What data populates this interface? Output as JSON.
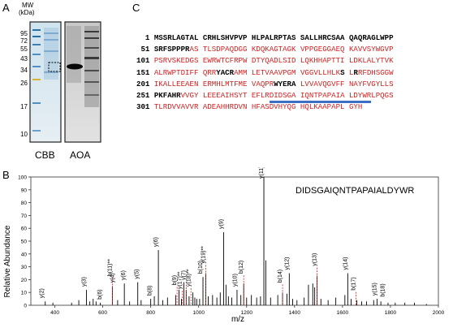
{
  "panels": {
    "a": "A",
    "b": "B",
    "c": "C"
  },
  "gel": {
    "mw_header_1": "MW",
    "mw_header_2": "(kDa)",
    "markers": [
      "95",
      "72",
      "55",
      "43",
      "34",
      "26",
      "17",
      "10"
    ],
    "lane_cbb": "CBB",
    "lane_aoa": "AOA"
  },
  "sequence": {
    "rows": [
      {
        "num": "1",
        "segments": [
          {
            "t": "MSSRLAGTAL CRHLSHVPVP HLPALRPTAS SALLHRCSAA QAQRAGLWPP",
            "c": "k"
          }
        ]
      },
      {
        "num": "51",
        "segments": [
          {
            "t": "SRFSPPPR",
            "c": "k"
          },
          {
            "t": "AS TLSDPAQDGG KDQKAGTAGK VPPGEGGAEQ KAVVSYWGVP",
            "c": "r"
          }
        ]
      },
      {
        "num": "101",
        "segments": [
          {
            "t": "PSRVSKEDGS EWRWTCFRPW DTYQADLSID LQKHHAPTTI LDKLALYTVK",
            "c": "r"
          }
        ]
      },
      {
        "num": "151",
        "segments": [
          {
            "t": "ALRWPTDIFF QRR",
            "c": "r"
          },
          {
            "t": "YACR",
            "c": "k"
          },
          {
            "t": "AMM LETVAAVPGM VGGVLLHLK",
            "c": "r"
          },
          {
            "t": "S",
            "c": "k"
          },
          {
            "t": " L",
            "c": "r"
          },
          {
            "t": "R",
            "c": "k"
          },
          {
            "t": "RFDHSGGW",
            "c": "r"
          }
        ]
      },
      {
        "num": "201",
        "segments": [
          {
            "t": "IKALLEEAEN ERMHLMTFME VAQPR",
            "c": "r"
          },
          {
            "t": "WYERA",
            "c": "k"
          },
          {
            "t": " LVVAVQGVFF NAYFVGYLLS",
            "c": "r"
          }
        ]
      },
      {
        "num": "251",
        "segments": [
          {
            "t": "PKFAHR",
            "c": "k"
          },
          {
            "t": "VVGY LEEEAIHSYT EFLR",
            "c": "r"
          },
          {
            "t": "DIDSGA IQNTPAPAIA LDYWR",
            "c": "u"
          },
          {
            "t": "LPQGS",
            "c": "r"
          }
        ]
      },
      {
        "num": "301",
        "segments": [
          {
            "t": "TLRDVVAVVR ADEAHHRDVN HFASDVHYQG HQLKAAPAPL GYH",
            "c": "r"
          }
        ]
      }
    ]
  },
  "spectrum": {
    "peptide": "DIDSGAIQNTPAPAIALDYWR",
    "ylabel": "Relative Abundance",
    "xlabel": "m/z",
    "colors": {
      "annot": "#e02020",
      "underline": "#3a6fc4",
      "red": "#d42020"
    }
  },
  "chart_data": {
    "type": "bar",
    "xlabel": "m/z",
    "ylabel": "Relative Abundance",
    "xlim": [
      300,
      2000
    ],
    "ylim": [
      0,
      100
    ],
    "xticks": [
      400,
      600,
      800,
      1000,
      1200,
      1400,
      1600,
      1800,
      2000
    ],
    "yticks": [
      0,
      10,
      20,
      30,
      40,
      50,
      60,
      70,
      80,
      90,
      100
    ],
    "peaks": [
      {
        "mz": 360,
        "i": 3
      },
      {
        "mz": 392,
        "i": 2
      },
      {
        "mz": 470,
        "i": 2
      },
      {
        "mz": 500,
        "i": 4
      },
      {
        "mz": 532,
        "i": 12
      },
      {
        "mz": 546,
        "i": 3
      },
      {
        "mz": 560,
        "i": 5
      },
      {
        "mz": 572,
        "i": 3
      },
      {
        "mz": 590,
        "i": 2
      },
      {
        "mz": 640,
        "i": 15
      },
      {
        "mz": 662,
        "i": 4
      },
      {
        "mz": 690,
        "i": 17
      },
      {
        "mz": 712,
        "i": 3
      },
      {
        "mz": 746,
        "i": 18
      },
      {
        "mz": 760,
        "i": 4
      },
      {
        "mz": 800,
        "i": 5
      },
      {
        "mz": 815,
        "i": 7
      },
      {
        "mz": 832,
        "i": 43
      },
      {
        "mz": 850,
        "i": 4
      },
      {
        "mz": 870,
        "i": 6
      },
      {
        "mz": 904,
        "i": 8
      },
      {
        "mz": 918,
        "i": 12
      },
      {
        "mz": 928,
        "i": 5
      },
      {
        "mz": 938,
        "i": 18
      },
      {
        "mz": 948,
        "i": 12
      },
      {
        "mz": 960,
        "i": 7
      },
      {
        "mz": 976,
        "i": 10
      },
      {
        "mz": 984,
        "i": 6
      },
      {
        "mz": 992,
        "i": 5
      },
      {
        "mz": 1004,
        "i": 5
      },
      {
        "mz": 1018,
        "i": 22
      },
      {
        "mz": 1030,
        "i": 25
      },
      {
        "mz": 1040,
        "i": 7
      },
      {
        "mz": 1058,
        "i": 8
      },
      {
        "mz": 1076,
        "i": 6
      },
      {
        "mz": 1090,
        "i": 10
      },
      {
        "mz": 1104,
        "i": 57
      },
      {
        "mz": 1114,
        "i": 16
      },
      {
        "mz": 1124,
        "i": 7
      },
      {
        "mz": 1138,
        "i": 6
      },
      {
        "mz": 1160,
        "i": 12
      },
      {
        "mz": 1176,
        "i": 8
      },
      {
        "mz": 1188,
        "i": 17
      },
      {
        "mz": 1200,
        "i": 6
      },
      {
        "mz": 1220,
        "i": 8
      },
      {
        "mz": 1242,
        "i": 6
      },
      {
        "mz": 1258,
        "i": 7
      },
      {
        "mz": 1272,
        "i": 100
      },
      {
        "mz": 1280,
        "i": 35
      },
      {
        "mz": 1300,
        "i": 6
      },
      {
        "mz": 1330,
        "i": 8
      },
      {
        "mz": 1350,
        "i": 10
      },
      {
        "mz": 1368,
        "i": 9
      },
      {
        "mz": 1378,
        "i": 25
      },
      {
        "mz": 1392,
        "i": 5
      },
      {
        "mz": 1410,
        "i": 4
      },
      {
        "mz": 1440,
        "i": 6
      },
      {
        "mz": 1458,
        "i": 16
      },
      {
        "mz": 1476,
        "i": 17
      },
      {
        "mz": 1484,
        "i": 14
      },
      {
        "mz": 1494,
        "i": 23
      },
      {
        "mz": 1510,
        "i": 5
      },
      {
        "mz": 1540,
        "i": 4
      },
      {
        "mz": 1572,
        "i": 6
      },
      {
        "mz": 1610,
        "i": 8
      },
      {
        "mz": 1622,
        "i": 25
      },
      {
        "mz": 1636,
        "i": 5
      },
      {
        "mz": 1660,
        "i": 4
      },
      {
        "mz": 1680,
        "i": 3
      },
      {
        "mz": 1700,
        "i": 3
      },
      {
        "mz": 1730,
        "i": 4
      },
      {
        "mz": 1744,
        "i": 5
      },
      {
        "mz": 1760,
        "i": 3
      },
      {
        "mz": 1790,
        "i": 2
      },
      {
        "mz": 1820,
        "i": 2
      },
      {
        "mz": 1860,
        "i": 2
      },
      {
        "mz": 1900,
        "i": 2
      },
      {
        "mz": 1950,
        "i": 1
      }
    ],
    "annotations": [
      {
        "label": "y(2)",
        "mz": 356,
        "dash": 0
      },
      {
        "label": "y(3)",
        "mz": 532,
        "dash": 0
      },
      {
        "label": "b(6)",
        "mz": 598,
        "dash": 0
      },
      {
        "label": "b(11)**",
        "mz": 640,
        "dash": 1
      },
      {
        "label": "y(4)",
        "mz": 650,
        "dash": 0
      },
      {
        "label": "y(6)",
        "mz": 696,
        "dash": 0
      },
      {
        "label": "y(5)",
        "mz": 752,
        "dash": 0
      },
      {
        "label": "b(8)",
        "mz": 806,
        "dash": 0
      },
      {
        "label": "y(6)",
        "mz": 832,
        "dash": 0
      },
      {
        "label": "b(9)",
        "mz": 910,
        "dash": 1
      },
      {
        "label": "y(17)**",
        "mz": 932,
        "dash": 1
      },
      {
        "label": "y(7)",
        "mz": 948,
        "dash": 1
      },
      {
        "label": "y(18)**",
        "mz": 968,
        "dash": 1
      },
      {
        "label": "b(10)",
        "mz": 1018,
        "dash": 0
      },
      {
        "label": "y(19)**",
        "mz": 1030,
        "dash": 1
      },
      {
        "label": "y(9)",
        "mz": 1104,
        "dash": 0
      },
      {
        "label": "y(10)",
        "mz": 1162,
        "dash": 0
      },
      {
        "label": "b(12)",
        "mz": 1188,
        "dash": 1
      },
      {
        "label": "y(11)",
        "mz": 1272,
        "dash": 0
      },
      {
        "label": "b(14)",
        "mz": 1350,
        "dash": 1
      },
      {
        "label": "y(12)",
        "mz": 1378,
        "dash": 0
      },
      {
        "label": "y(13)",
        "mz": 1494,
        "dash": 1
      },
      {
        "label": "y(14)",
        "mz": 1622,
        "dash": 0
      },
      {
        "label": "b(17)",
        "mz": 1656,
        "dash": 1
      },
      {
        "label": "y(15)",
        "mz": 1744,
        "dash": 0
      },
      {
        "label": "b(18)",
        "mz": 1778,
        "dash": 0
      }
    ]
  }
}
